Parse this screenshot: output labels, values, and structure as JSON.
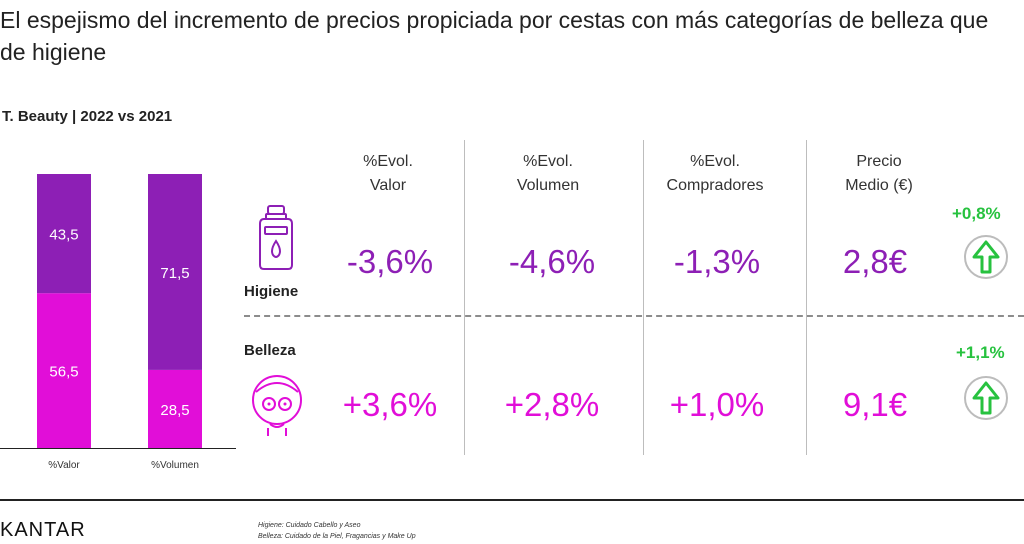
{
  "title": "El espejismo del incremento de precios propiciada por cestas con más categorías de belleza que de higiene",
  "subtitle": "T. Beauty | 2022 vs 2021",
  "chart_data": {
    "type": "bar",
    "stacked": true,
    "categories": [
      "%Valor",
      "%Volumen"
    ],
    "series": [
      {
        "name": "Belleza",
        "values": [
          56.5,
          28.5
        ],
        "labels": [
          "56,5",
          "28,5"
        ],
        "color": "#e10ed8"
      },
      {
        "name": "Higiene",
        "values": [
          43.5,
          71.5
        ],
        "labels": [
          "43,5",
          "71,5"
        ],
        "color": "#8d1fb5"
      }
    ],
    "ylim": [
      0,
      100
    ]
  },
  "table": {
    "columns": [
      "%Evol.\nValor",
      "%Evol.\nVolumen",
      "%Evol.\nCompradores",
      "Precio\nMedio (€)"
    ],
    "rows": [
      {
        "label": "Higiene",
        "icon": "lotion-bottle-icon",
        "values": [
          "-3,6%",
          "-4,6%",
          "-1,3%",
          "2,8€"
        ],
        "change": "+0,8%",
        "color": "#8d1fb5"
      },
      {
        "label": "Belleza",
        "icon": "face-mask-icon",
        "values": [
          "+3,6%",
          "+2,8%",
          "+1,0%",
          "9,1€"
        ],
        "change": "+1,1%",
        "color": "#e10ed8"
      }
    ]
  },
  "colors": {
    "accent_up": "#27c23f",
    "higiene": "#8d1fb5",
    "belleza": "#e10ed8"
  },
  "footer": {
    "brand": "KANTAR",
    "note1": "Higiene: Cuidado Cabello y Aseo",
    "note2": "Belleza: Cuidado de la Piel, Fragancias y Make Up"
  }
}
